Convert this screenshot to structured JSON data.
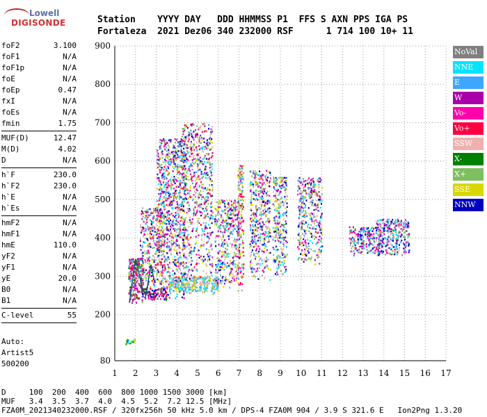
{
  "logo": {
    "line1": "Lowell",
    "line2": "DIGISONDE"
  },
  "header": {
    "line1": "Station    YYYY DAY   DDD HHMMSS P1  FFS S AXN PPS IGA PS",
    "line2": "Fortaleza  2021 Dez06 340 232000 RSF      1 714 100 10+ 11"
  },
  "params": {
    "group1": [
      {
        "name": "foF2",
        "value": "3.100"
      },
      {
        "name": "foF1",
        "value": "N/A"
      },
      {
        "name": "foF1p",
        "value": "N/A"
      },
      {
        "name": "foE",
        "value": "N/A"
      },
      {
        "name": "foEp",
        "value": "0.47"
      },
      {
        "name": "fxI",
        "value": "N/A"
      },
      {
        "name": "foEs",
        "value": "N/A"
      },
      {
        "name": "fmin",
        "value": "1.75"
      }
    ],
    "group2": [
      {
        "name": "MUF(D)",
        "value": "12.47"
      },
      {
        "name": "M(D)",
        "value": "4.02"
      },
      {
        "name": "D",
        "value": "N/A"
      }
    ],
    "group3": [
      {
        "name": "h`F",
        "value": "230.0"
      },
      {
        "name": "h`F2",
        "value": "230.0"
      },
      {
        "name": "h`E",
        "value": "N/A"
      },
      {
        "name": "h`Es",
        "value": "N/A"
      }
    ],
    "group4": [
      {
        "name": "hmF2",
        "value": "N/A"
      },
      {
        "name": "hmF1",
        "value": "N/A"
      },
      {
        "name": "hmE",
        "value": "110.0"
      },
      {
        "name": "yF2",
        "value": "N/A"
      },
      {
        "name": "yF1",
        "value": "N/A"
      },
      {
        "name": "yE",
        "value": "20.0"
      },
      {
        "name": "B0",
        "value": "N/A"
      },
      {
        "name": "B1",
        "value": "N/A"
      }
    ],
    "group5": [
      {
        "name": "C-level",
        "value": "55"
      }
    ]
  },
  "auto": {
    "line1": "Auto:",
    "line2": "Artist5",
    "line3": "500200"
  },
  "legend": [
    {
      "label": "NoVal",
      "color": "#808080"
    },
    {
      "label": "NNE",
      "color": "#00e5ff"
    },
    {
      "label": "E",
      "color": "#3ea6ff"
    },
    {
      "label": "W",
      "color": "#aa00aa"
    },
    {
      "label": "Vo-",
      "color": "#ff00aa"
    },
    {
      "label": "Vo+",
      "color": "#ff0040"
    },
    {
      "label": "SSW",
      "color": "#f0b0b0"
    },
    {
      "label": "X-",
      "color": "#008000"
    },
    {
      "label": "X+",
      "color": "#7fbf5f"
    },
    {
      "label": "SSE",
      "color": "#d8d800"
    },
    {
      "label": "NNW",
      "color": "#0000c0"
    }
  ],
  "bottom": {
    "line1": "D     100  200  400  600  800 1000 1500 3000 [km]",
    "line2": "MUF   3.4  3.5  3.7  4.0  4.5  5.2  7.2 12.5 [MHz]",
    "line3": "FZA0M_2021340232000.RSF / 320fx256h 50 kHz 5.0 km / DPS-4 FZA0M 904 / 3.9 S 321.6 E   Ion2Png 1.3.20"
  },
  "chart_data": {
    "type": "scatter",
    "title": "",
    "xlabel": "",
    "ylabel": "",
    "xlim": [
      1,
      17
    ],
    "ylim": [
      80,
      900
    ],
    "x_ticks": [
      1,
      2,
      3,
      4,
      5,
      6,
      7,
      8,
      9,
      10,
      11,
      12,
      13,
      14,
      15,
      16,
      17
    ],
    "y_ticks": [
      80,
      200,
      300,
      400,
      500,
      600,
      700,
      800,
      900
    ],
    "grid": "dotted",
    "legend_placement": "right",
    "clusters": [
      {
        "x": [
          1.5,
          1.95
        ],
        "y": [
          125,
          137
        ],
        "density": 0.8,
        "colors": [
          "X-",
          "SSE",
          "NNE"
        ]
      },
      {
        "x": [
          1.65,
          2.35
        ],
        "y": [
          230,
          350
        ],
        "density": 0.55,
        "colors": [
          "Vo+",
          "Vo-",
          "W",
          "E",
          "X+",
          "X-"
        ]
      },
      {
        "x": [
          2.3,
          3.5
        ],
        "y": [
          240,
          270
        ],
        "density": 0.6,
        "colors": [
          "Vo+",
          "Vo-",
          "W",
          "X-",
          "NNW"
        ]
      },
      {
        "x": [
          2.2,
          3.4
        ],
        "y": [
          260,
          480
        ],
        "density": 0.28,
        "colors": [
          "Vo+",
          "Vo-",
          "W",
          "E",
          "NNE",
          "SSE",
          "SSW",
          "X+",
          "NNW"
        ]
      },
      {
        "x": [
          3.0,
          4.4
        ],
        "y": [
          245,
          660
        ],
        "density": 0.3,
        "colors": [
          "Vo+",
          "Vo-",
          "W",
          "E",
          "NNE",
          "SSE",
          "SSW",
          "X+",
          "NNW"
        ]
      },
      {
        "x": [
          3.6,
          6.0
        ],
        "y": [
          255,
          300
        ],
        "density": 0.55,
        "colors": [
          "E",
          "NNE",
          "SSW",
          "SSE",
          "X+"
        ]
      },
      {
        "x": [
          4.2,
          5.7
        ],
        "y": [
          290,
          700
        ],
        "density": 0.22,
        "colors": [
          "E",
          "NNE",
          "Vo-",
          "Vo+",
          "W",
          "SSE",
          "SSW",
          "X+",
          "NNW"
        ]
      },
      {
        "x": [
          5.8,
          7.0
        ],
        "y": [
          270,
          500
        ],
        "density": 0.3,
        "colors": [
          "E",
          "NNE",
          "SSE",
          "SSW",
          "Vo-",
          "W",
          "X+",
          "NNW"
        ]
      },
      {
        "x": [
          6.9,
          7.2
        ],
        "y": [
          260,
          590
        ],
        "density": 0.35,
        "colors": [
          "Vo+",
          "Vo-",
          "E",
          "SSE",
          "X+"
        ]
      },
      {
        "x": [
          7.5,
          8.5
        ],
        "y": [
          290,
          580
        ],
        "density": 0.3,
        "colors": [
          "NNW",
          "W",
          "E",
          "NNE",
          "SSE",
          "SSW",
          "Vo-",
          "X+"
        ]
      },
      {
        "x": [
          8.6,
          9.3
        ],
        "y": [
          300,
          560
        ],
        "density": 0.3,
        "colors": [
          "NNW",
          "W",
          "E",
          "NNE",
          "SSE",
          "SSW",
          "X+"
        ]
      },
      {
        "x": [
          9.8,
          11.0
        ],
        "y": [
          330,
          560
        ],
        "density": 0.28,
        "colors": [
          "NNW",
          "W",
          "E",
          "NNE",
          "SSE",
          "SSW",
          "Vo-",
          "X+"
        ]
      },
      {
        "x": [
          12.3,
          13.9
        ],
        "y": [
          355,
          430
        ],
        "density": 0.4,
        "colors": [
          "NNW",
          "W",
          "E",
          "NNE",
          "Vo-",
          "SSW",
          "X+"
        ]
      },
      {
        "x": [
          13.6,
          15.2
        ],
        "y": [
          355,
          450
        ],
        "density": 0.4,
        "colors": [
          "NNW",
          "W",
          "E",
          "NNE",
          "Vo-",
          "SSW",
          "X+"
        ]
      }
    ],
    "trace": {
      "color": "#006060",
      "points": [
        [
          1.72,
          235
        ],
        [
          1.85,
          285
        ],
        [
          2.0,
          345
        ],
        [
          2.2,
          300
        ],
        [
          2.35,
          265
        ],
        [
          2.5,
          250
        ],
        [
          2.75,
          330
        ],
        [
          2.9,
          290
        ]
      ]
    }
  }
}
